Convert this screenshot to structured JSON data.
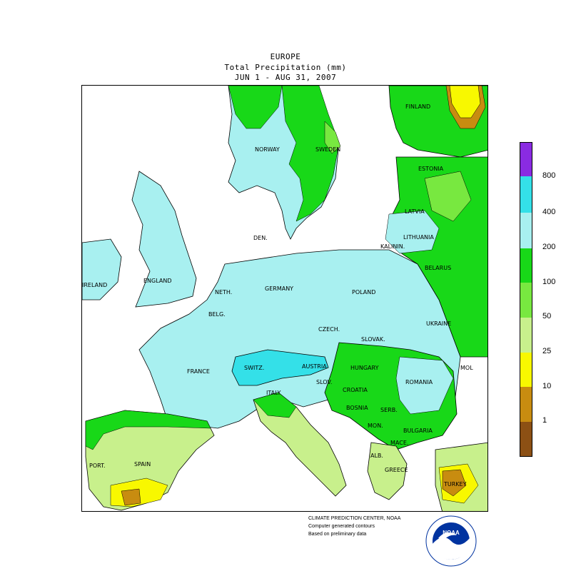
{
  "header": {
    "title": "EUROPE",
    "subtitle": "Total Precipitation (mm)",
    "period": "JUN  1 - AUG 31, 2007"
  },
  "legend": {
    "levels": [
      {
        "label": "",
        "color": "#8a2be2"
      },
      {
        "label": "800",
        "color": "#8a2be2"
      },
      {
        "label": "400",
        "color": "#34e0e8"
      },
      {
        "label": "200",
        "color": "#a8f0f0"
      },
      {
        "label": "100",
        "color": "#18d818"
      },
      {
        "label": "50",
        "color": "#78e840"
      },
      {
        "label": "25",
        "color": "#c8f08c"
      },
      {
        "label": "10",
        "color": "#f8f800"
      },
      {
        "label": "1",
        "color": "#c88c10"
      },
      {
        "label": "",
        "color": "#8c5014"
      }
    ]
  },
  "labels": {
    "finland": "FINLAND",
    "norway": "NORWAY",
    "sweden": "SWEDEN",
    "estonia": "ESTONIA",
    "latvia": "LATVIA",
    "lithuania": "LITHUANIA",
    "kalinin": "KALININ.",
    "belarus": "BELARUS",
    "den": "DEN.",
    "ireland": "IRELAND",
    "england": "ENGLAND",
    "neth": "NETH.",
    "germany": "GERMANY",
    "poland": "POLAND",
    "belg": "BELG.",
    "czech": "CZECH.",
    "slovak": "SLOVAK.",
    "ukraine": "UKRAINE",
    "france": "FRANCE",
    "switz": "SWITZ.",
    "austria": "AUSTRIA",
    "hungary": "HUNGARY",
    "slov": "SLOV.",
    "romania": "ROMANIA",
    "mol": "MOL",
    "italy": "ITALY",
    "croatia": "CROATIA",
    "bosnia": "BOSNIA",
    "serb": "SERB.",
    "mon": "MON.",
    "bulgaria": "BULGARIA",
    "mace": "MACE.",
    "alb": "ALB.",
    "greece": "GREECE",
    "turkey": "TURKEY",
    "spain": "SPAIN",
    "port": "PORT."
  },
  "credits": {
    "line1": "CLIMATE PREDICTION CENTER, NOAA",
    "line2": "Computer generated contours",
    "line3": "Based on preliminary data"
  },
  "logo": {
    "text": "NOAA"
  }
}
